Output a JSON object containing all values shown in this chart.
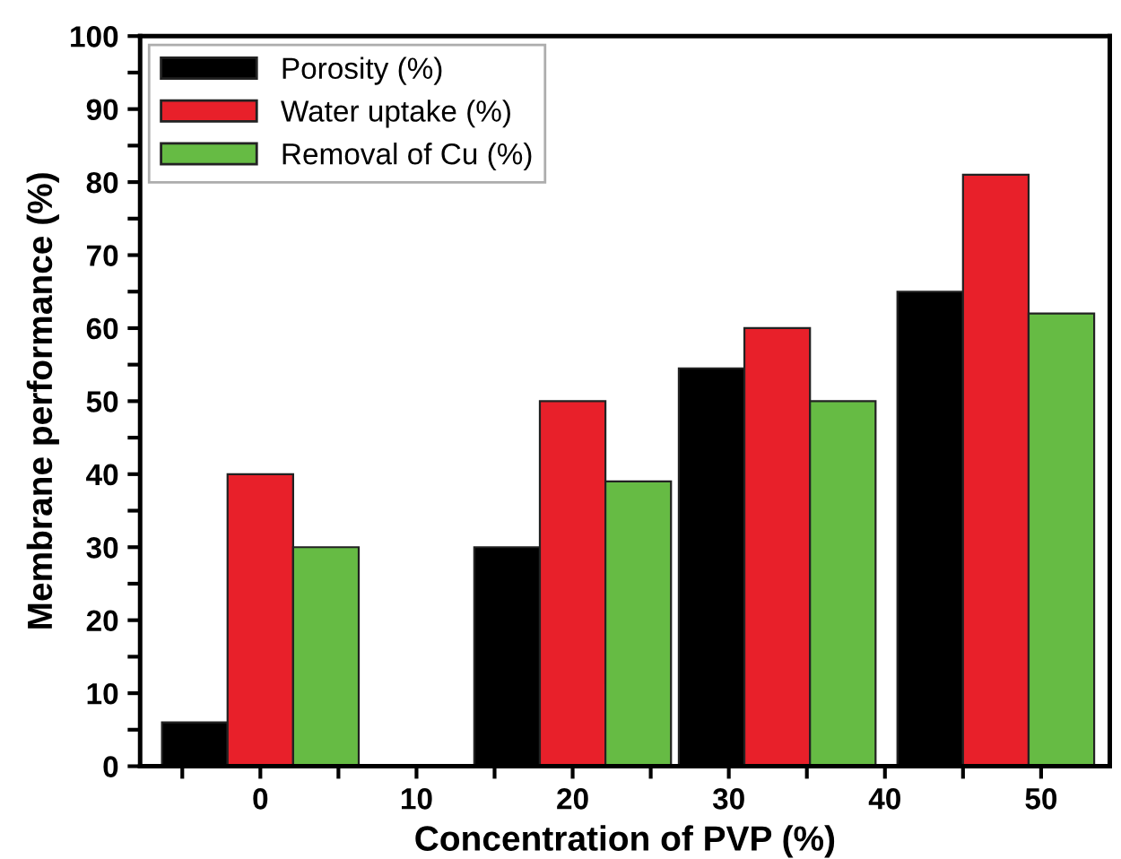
{
  "chart_data": {
    "type": "bar",
    "xlabel": "Concentration of PVP (%)",
    "ylabel": "Membrane performance (%)",
    "series": [
      {
        "name": "Porosity (%)",
        "color": "#000000",
        "x": [
          -4.2,
          15.8,
          28.9,
          42.9
        ],
        "values": [
          6,
          30,
          54.5,
          65
        ]
      },
      {
        "name": "Water uptake (%)",
        "color": "#e8202a",
        "x": [
          0,
          20,
          33.1,
          47.1
        ],
        "values": [
          40,
          50,
          60,
          81
        ]
      },
      {
        "name": "Removal of Cu (%)",
        "color": "#66bb44",
        "x": [
          4.2,
          24.2,
          37.3,
          51.3
        ],
        "values": [
          30,
          39,
          50,
          62
        ]
      }
    ],
    "xlim": [
      -7.7,
      54.4
    ],
    "ylim": [
      0,
      100
    ],
    "xticks": [
      {
        "value": -5,
        "label": null
      },
      0,
      {
        "value": 5,
        "label": null
      },
      10,
      {
        "value": 15,
        "label": null
      },
      20,
      {
        "value": 25,
        "label": null
      },
      30,
      {
        "value": 35,
        "label": null
      },
      40,
      {
        "value": 45,
        "label": null
      },
      50
    ],
    "yticks": [
      0,
      {
        "value": 5,
        "label": null
      },
      10,
      {
        "value": 15,
        "label": null
      },
      20,
      {
        "value": 25,
        "label": null
      },
      30,
      {
        "value": 35,
        "label": null
      },
      40,
      {
        "value": 45,
        "label": null
      },
      50,
      {
        "value": 55,
        "label": null
      },
      60,
      {
        "value": 65,
        "label": null
      },
      70,
      {
        "value": 75,
        "label": null
      },
      80,
      {
        "value": 85,
        "label": null
      },
      90,
      {
        "value": 95,
        "label": null
      },
      100
    ],
    "grid": false,
    "legend": "top left"
  }
}
